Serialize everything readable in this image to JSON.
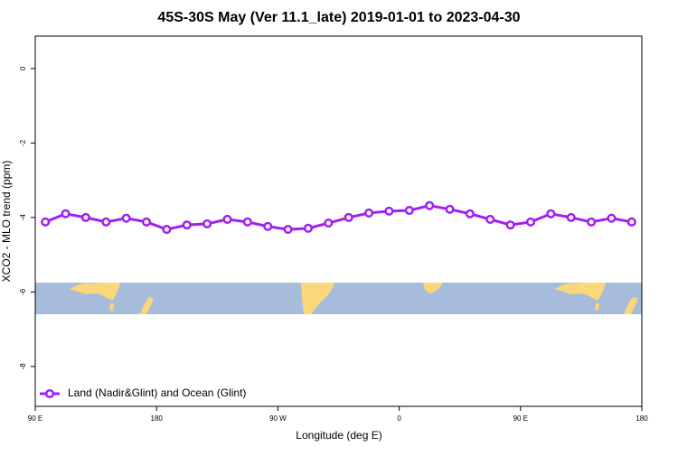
{
  "chart_data": {
    "type": "line",
    "title": "45S-30S May (Ver 11.1_late)   2019-01-01 to 2023-04-30",
    "xlabel": "Longitude (deg E)",
    "ylabel": "XCO2 - MLO trend (ppm)",
    "x": [
      97.5,
      112.5,
      127.5,
      142.5,
      157.5,
      172.5,
      187.5,
      202.5,
      217.5,
      232.5,
      247.5,
      262.5,
      277.5,
      292.5,
      307.5,
      322.5,
      337.5,
      352.5,
      367.5,
      382.5,
      397.5,
      412.5,
      427.5,
      442.5,
      457.5,
      472.5,
      487.5,
      502.5,
      517.5,
      532.5
    ],
    "series": [
      {
        "name": "Land (Nadir&Glint) and Ocean (Glint)",
        "color": "#a020f0",
        "values": [
          -4.12,
          -3.9,
          -4.0,
          -4.12,
          -4.02,
          -4.12,
          -4.32,
          -4.2,
          -4.17,
          -4.05,
          -4.12,
          -4.24,
          -4.32,
          -4.29,
          -4.15,
          -4.0,
          -3.88,
          -3.83,
          -3.81,
          -3.68,
          -3.78,
          -3.9,
          -4.05,
          -4.2,
          -4.12,
          -3.9,
          -4.0,
          -4.12,
          -4.02,
          -4.12
        ]
      }
    ],
    "xlim": [
      90,
      540
    ],
    "xticks": [
      {
        "value": 90,
        "label": "90 E"
      },
      {
        "value": 180,
        "label": "180"
      },
      {
        "value": 270,
        "label": "90 W"
      },
      {
        "value": 360,
        "label": "0"
      },
      {
        "value": 450,
        "label": "90 E"
      },
      {
        "value": 540,
        "label": "180"
      }
    ],
    "ylim": [
      -9.07,
      0.87
    ],
    "yticks": [
      0,
      -2,
      -4,
      -6,
      -8
    ],
    "legend": "bottom-left"
  }
}
